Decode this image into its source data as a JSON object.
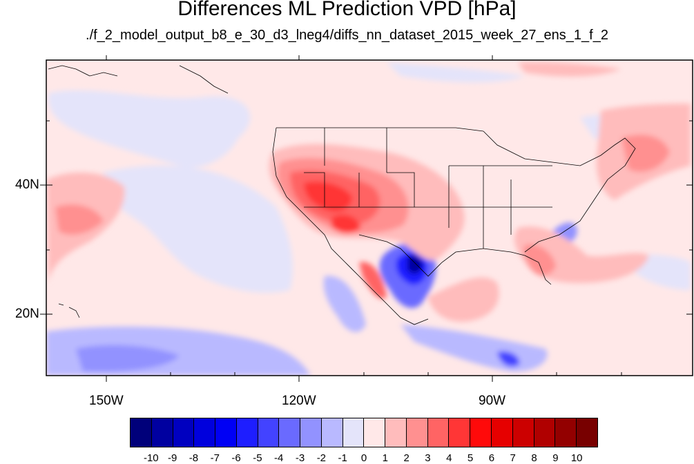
{
  "title": "Differences ML Prediction VPD [hPa]",
  "subtitle": "./f_2_model_output_b8_e_30_d3_lneg4/diffs_nn_dataset_2015_week_27_ens_1_f_2",
  "lat_labels": [
    "40N",
    "20N"
  ],
  "lon_labels": [
    "150W",
    "120W",
    "90W"
  ],
  "colorbar": {
    "ticks": [
      "-10",
      "-9",
      "-8",
      "-7",
      "-6",
      "-5",
      "-4",
      "-3",
      "-2",
      "-1",
      "0",
      "1",
      "2",
      "3",
      "4",
      "5",
      "6",
      "7",
      "8",
      "9",
      "10"
    ],
    "colors": [
      "#00007a",
      "#0000a0",
      "#0000c0",
      "#0000dd",
      "#0000f5",
      "#1e1eff",
      "#4343ff",
      "#6a6aff",
      "#9292ff",
      "#b9b9ff",
      "#e4e4fa",
      "#ffe8e8",
      "#ffbcbc",
      "#ff9090",
      "#ff6464",
      "#ff3636",
      "#ff0a0a",
      "#e60000",
      "#cc0000",
      "#b00000",
      "#930000",
      "#780000"
    ]
  }
}
